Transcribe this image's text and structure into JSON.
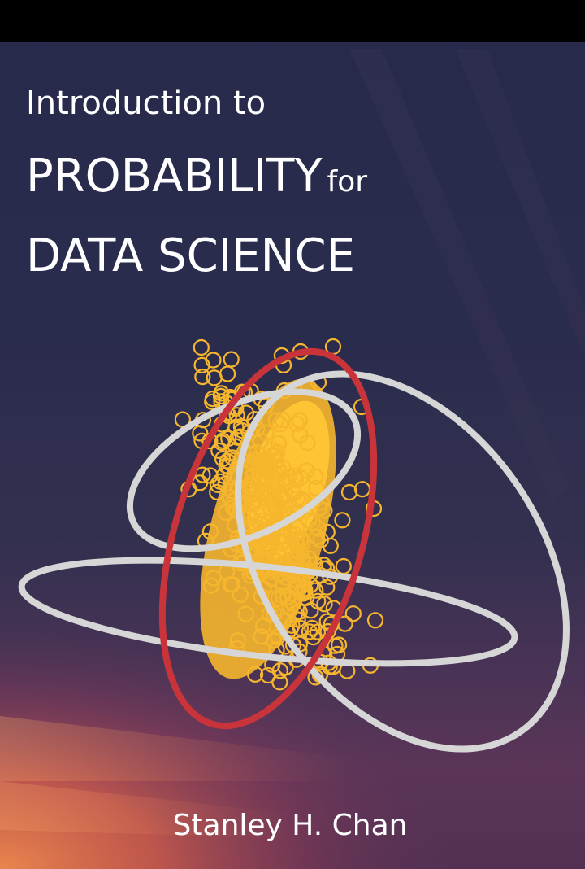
{
  "cover": {
    "title_line1": "Introduction to",
    "title_line2_main": "PROBABILITY",
    "title_line2_small": "for",
    "title_line3": "DATA SCIENCE",
    "author": "Stanley H. Chan"
  },
  "colors": {
    "background_top": "#272a4c",
    "background_bottom_glow": "#e8734a",
    "ellipse_gray": "#d6d6d6",
    "ellipse_red": "#c9343b",
    "points": "#f6b62d"
  },
  "icons": [
    "cover-illustration-ellipses-icon"
  ]
}
